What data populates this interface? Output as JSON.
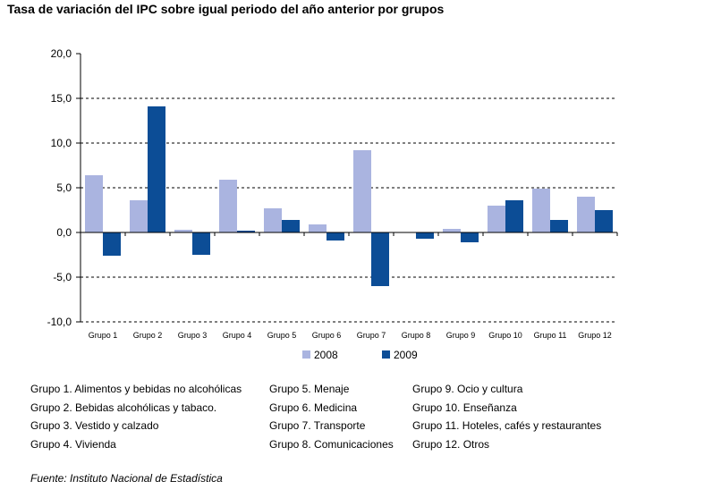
{
  "chart_data": {
    "type": "bar",
    "title": "Tasa de variación del IPC sobre igual periodo del año anterior por grupos",
    "categories": [
      "Grupo 1",
      "Grupo 2",
      "Grupo 3",
      "Grupo 4",
      "Grupo 5",
      "Grupo 6",
      "Grupo 7",
      "Grupo 8",
      "Grupo 9",
      "Grupo 10",
      "Grupo 11",
      "Grupo 12"
    ],
    "series": [
      {
        "name": "2008",
        "color": "#aab4e0",
        "values": [
          6.4,
          3.6,
          0.3,
          5.9,
          2.7,
          0.9,
          9.2,
          0.0,
          0.4,
          3.0,
          4.9,
          4.0
        ]
      },
      {
        "name": "2009",
        "color": "#0c4d96",
        "values": [
          -2.6,
          14.1,
          -2.5,
          0.2,
          1.4,
          -0.9,
          -6.0,
          -0.7,
          -1.1,
          3.6,
          1.4,
          2.5
        ]
      }
    ],
    "ylim": [
      -10,
      20
    ],
    "yticks": [
      "20,0",
      "15,0",
      "10,0",
      "5,0",
      "0,0",
      "-5,0",
      "-10,0"
    ],
    "ytick_values": [
      20,
      15,
      10,
      5,
      0,
      -5,
      -10
    ],
    "grid": "horizontal dashed",
    "legend_position": "bottom"
  },
  "groups": [
    "Grupo 1. Alimentos y bebidas no alcohólicas",
    "Grupo 2. Bebidas alcohólicas y  tabaco.",
    "Grupo 3. Vestido y calzado",
    "Grupo 4. Vivienda",
    "Grupo 5. Menaje",
    "Grupo 6. Medicina",
    "Grupo 7. Transporte",
    "Grupo 8. Comunicaciones",
    "Grupo 9. Ocio y cultura",
    "Grupo 10. Enseñanza",
    "Grupo 11. Hoteles, cafés y restaurantes",
    "Grupo 12. Otros"
  ],
  "source": "Fuente: Instituto Nacional de Estadística"
}
